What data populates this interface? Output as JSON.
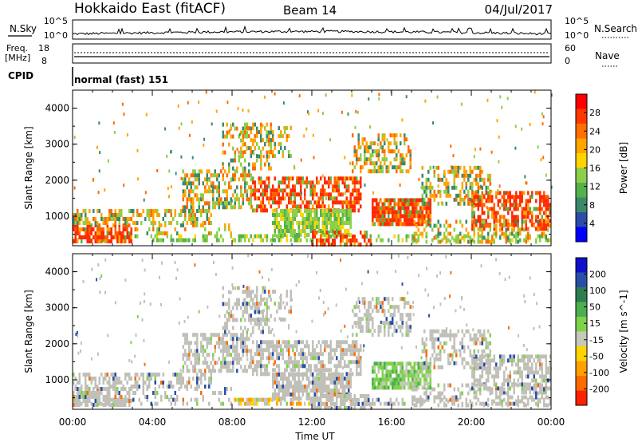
{
  "header": {
    "station": "Hokkaido East (fitACF)",
    "beam": "Beam 14",
    "date": "04/Jul/2017"
  },
  "noise": {
    "left_label": "N.Sky",
    "right_label": "N.Search",
    "left_ticks": [
      "10^5",
      "10^0"
    ],
    "right_ticks": [
      "10^5",
      "10^0"
    ]
  },
  "freq": {
    "label_line1": "Freq.",
    "label_line2": "[MHz]",
    "left_ticks": [
      "18",
      "8"
    ],
    "right_label": "Nave",
    "right_ticks": [
      "60",
      "0"
    ]
  },
  "cpid": {
    "label": "CPID",
    "mode_text": "normal (fast) 151"
  },
  "chart_data": [
    {
      "type": "heatmap",
      "title": "",
      "parameter": "Power",
      "ylabel": "Slant Range [km]",
      "xlabel": "Time UT",
      "x": [
        "00:00",
        "04:00",
        "08:00",
        "12:00",
        "16:00",
        "20:00",
        "00:00"
      ],
      "y_ticks": [
        1000,
        2000,
        3000,
        4000
      ],
      "ylim": [
        180,
        4500
      ],
      "colorbar": {
        "label": "Power [dB]",
        "ticks": [
          4,
          8,
          12,
          16,
          20,
          24,
          28
        ],
        "range": [
          0,
          32
        ],
        "colors": [
          "#0000ff",
          "#2a4ea8",
          "#3a8a6a",
          "#55b24a",
          "#8ccf4a",
          "#ffd400",
          "#ffa500",
          "#ff7000",
          "#ff3800",
          "#ff0000"
        ]
      }
    },
    {
      "type": "heatmap",
      "title": "",
      "parameter": "Velocity",
      "ylabel": "Slant Range [km]",
      "xlabel": "Time UT",
      "x": [
        "00:00",
        "04:00",
        "08:00",
        "12:00",
        "16:00",
        "20:00",
        "00:00"
      ],
      "y_ticks": [
        1000,
        2000,
        3000,
        4000
      ],
      "ylim": [
        180,
        4500
      ],
      "colorbar": {
        "label": "Velocity [m s^-1]",
        "ticks": [
          200,
          100,
          50,
          15,
          -15,
          -50,
          -100,
          -200
        ],
        "colors": [
          "#1010c8",
          "#2a4ea8",
          "#2e7d4f",
          "#4caf50",
          "#7fd34a",
          "#c8c8b8",
          "#ffd400",
          "#ffa000",
          "#ff6a00",
          "#ff2000"
        ]
      }
    }
  ],
  "colors": {
    "ground_scatter": "#bdbdb5"
  }
}
